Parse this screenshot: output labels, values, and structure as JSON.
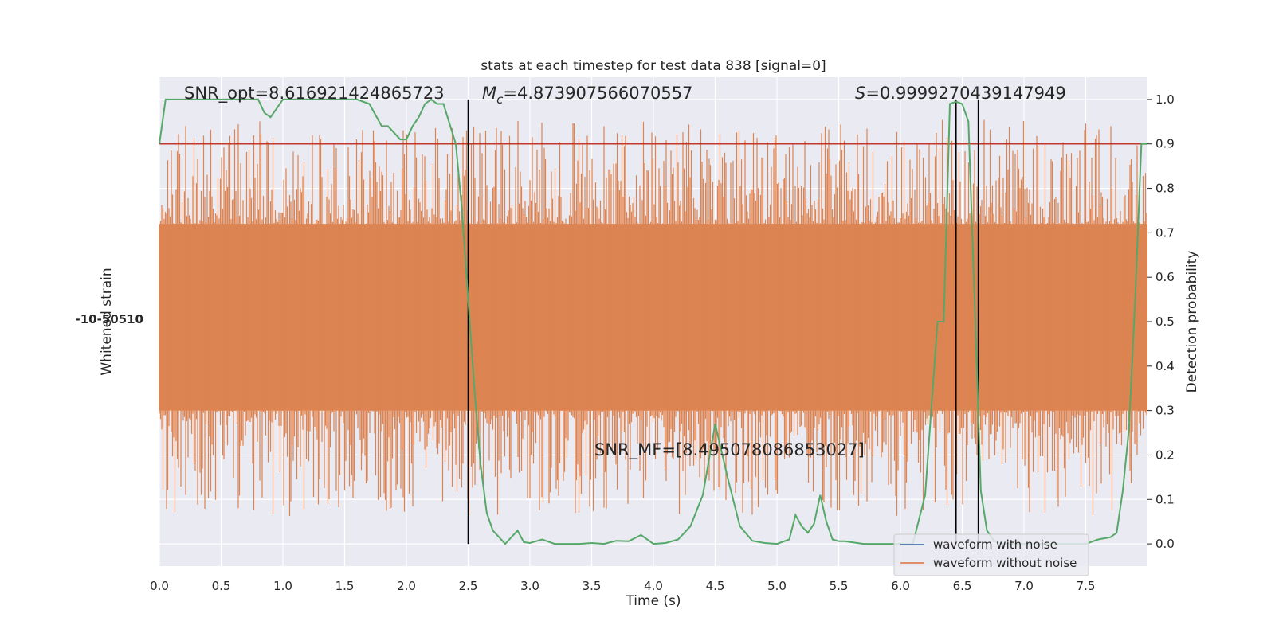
{
  "chart_data": {
    "type": "line",
    "title": "stats at each timestep for test data 838 [signal=0]",
    "xlabel": "Time (s)",
    "ylabel_left": "Whitened strain",
    "ylabel_right": "Detection probability",
    "xlim": [
      0,
      8.0
    ],
    "ylim_right": [
      -0.05,
      1.05
    ],
    "x_ticks": [
      "0.0",
      "0.5",
      "1.0",
      "1.5",
      "2.0",
      "2.5",
      "3.0",
      "3.5",
      "4.0",
      "4.5",
      "5.0",
      "5.5",
      "6.0",
      "6.5",
      "7.0",
      "7.5"
    ],
    "y_ticks_right": [
      "0.0",
      "0.1",
      "0.2",
      "0.3",
      "0.4",
      "0.5",
      "0.6",
      "0.7",
      "0.8",
      "0.9",
      "1.0"
    ],
    "grid": true,
    "threshold": {
      "y": 0.9,
      "color": "#c0392b"
    },
    "vertical_markers": [
      2.5,
      6.45,
      6.63
    ],
    "annotations": {
      "snr_opt": "SNR_opt=8.616921424865723",
      "mc_symbol": "M",
      "mc_sub": "c",
      "mc_value": "=4.873907566070557",
      "s_symbol": "S",
      "s_value": "=0.9999270439147949",
      "snr_mf": "SNR_MF=[8.495078086853027]"
    },
    "legend": {
      "placement": "lower-right",
      "entries": [
        {
          "label": "waveform with noise",
          "color": "#4c72b0"
        },
        {
          "label": "waveform without noise",
          "color": "#dd8452"
        }
      ]
    },
    "series": [
      {
        "name": "waveform without noise",
        "color": "#dd8452",
        "kind": "strain",
        "band_lower": 0.3,
        "band_upper": 0.72,
        "max_peak": 0.98,
        "min_trough": 0.05
      },
      {
        "name": "detection probability",
        "color": "#55a868",
        "x": [
          0.0,
          0.05,
          0.1,
          0.2,
          0.3,
          0.4,
          0.5,
          0.6,
          0.7,
          0.8,
          0.85,
          0.9,
          0.95,
          1.0,
          1.1,
          1.2,
          1.3,
          1.4,
          1.5,
          1.6,
          1.7,
          1.8,
          1.85,
          1.95,
          2.0,
          2.05,
          2.1,
          2.15,
          2.2,
          2.25,
          2.3,
          2.4,
          2.45,
          2.5,
          2.55,
          2.6,
          2.65,
          2.7,
          2.75,
          2.8,
          2.9,
          2.95,
          3.0,
          3.1,
          3.2,
          3.3,
          3.4,
          3.5,
          3.6,
          3.7,
          3.8,
          3.9,
          4.0,
          4.1,
          4.2,
          4.3,
          4.4,
          4.5,
          4.6,
          4.7,
          4.8,
          4.9,
          5.0,
          5.1,
          5.15,
          5.2,
          5.25,
          5.3,
          5.35,
          5.4,
          5.45,
          5.5,
          5.55,
          5.6,
          5.7,
          5.8,
          5.9,
          6.0,
          6.1,
          6.2,
          6.3,
          6.35,
          6.4,
          6.45,
          6.5,
          6.55,
          6.6,
          6.65,
          6.7,
          6.75,
          6.8,
          6.9,
          7.0,
          7.1,
          7.2,
          7.3,
          7.4,
          7.5,
          7.6,
          7.7,
          7.75,
          7.8,
          7.85,
          7.9,
          7.95,
          8.0
        ],
        "y": [
          0.9,
          1.0,
          1.0,
          1.0,
          1.0,
          1.0,
          1.0,
          1.0,
          1.0,
          1.0,
          0.97,
          0.96,
          0.98,
          1.0,
          1.0,
          1.0,
          1.0,
          1.0,
          1.0,
          1.0,
          0.99,
          0.94,
          0.94,
          0.91,
          0.91,
          0.94,
          0.96,
          0.99,
          1.0,
          0.99,
          0.99,
          0.9,
          0.75,
          0.55,
          0.35,
          0.18,
          0.07,
          0.03,
          0.015,
          0.0,
          0.03,
          0.004,
          0.002,
          0.01,
          0.0,
          0.0,
          0.0,
          0.002,
          0.0,
          0.007,
          0.006,
          0.02,
          0.0,
          0.002,
          0.01,
          0.04,
          0.11,
          0.27,
          0.15,
          0.04,
          0.007,
          0.002,
          0.0,
          0.01,
          0.065,
          0.04,
          0.025,
          0.045,
          0.11,
          0.05,
          0.01,
          0.006,
          0.006,
          0.004,
          0.0,
          0.0,
          0.0,
          0.0,
          0.0,
          0.11,
          0.5,
          0.5,
          0.99,
          0.995,
          0.99,
          0.95,
          0.55,
          0.12,
          0.03,
          0.01,
          0.0,
          0.0,
          0.0,
          0.0,
          0.0,
          0.0,
          0.0,
          0.0,
          0.01,
          0.015,
          0.025,
          0.12,
          0.26,
          0.55,
          0.9,
          0.9
        ]
      }
    ]
  },
  "left_axis_tick_clutter": [
    "-10",
    "-5",
    "0",
    "5",
    "10"
  ]
}
